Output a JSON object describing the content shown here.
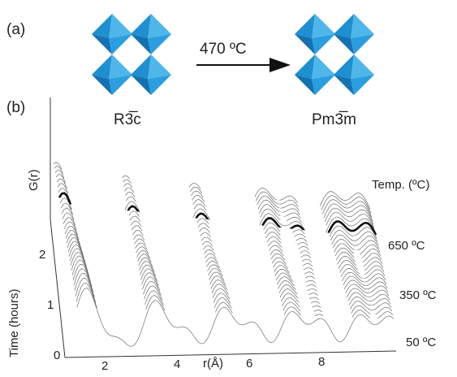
{
  "panel_a": {
    "label": "(a)",
    "left_phase": "R3̅c",
    "right_phase": "Pm3̅m",
    "transition": "470 ºC"
  },
  "panel_b": {
    "label": "(b)",
    "y_label": "G(r)",
    "time_label": "Time (hours)",
    "time_ticks": [
      "0",
      "1",
      "2"
    ],
    "x_label": "r(Å)",
    "x_ticks": [
      "2",
      "4",
      "6",
      "8"
    ],
    "temp_label": "Temp. (ºC)",
    "temps": [
      "650 ºC",
      "350 ºC",
      "50 ºC"
    ]
  }
}
